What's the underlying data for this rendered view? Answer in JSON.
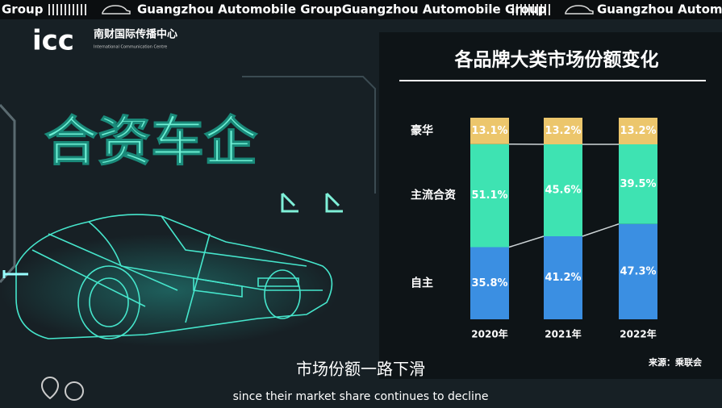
{
  "banner": {
    "texts": [
      "Group",
      "Guangzhou Automobile GroupGuangzhou Automobile Group",
      "Guangzhou Automobile"
    ]
  },
  "logo": {
    "mark": "icc",
    "name": "南财国际传播中心",
    "english": "International Communication Centre"
  },
  "headline": "合资车企",
  "subtitle": {
    "chinese": "市场份额一路下滑",
    "english": "since their market share continues to decline"
  },
  "chart_data": {
    "type": "stacked-bar",
    "title": "各品牌大类市场份额变化",
    "categories": [
      "2020年",
      "2021年",
      "2022年"
    ],
    "series": [
      {
        "name": "自主",
        "color": "#3b8fe2",
        "values": [
          35.8,
          41.2,
          47.3
        ],
        "value_labels": [
          "35.8%",
          "41.2%",
          "47.3%"
        ]
      },
      {
        "name": "主流合资",
        "color": "#3ee3b2",
        "values": [
          51.1,
          45.6,
          39.5
        ],
        "value_labels": [
          "51.1%",
          "45.6%",
          "39.5%"
        ]
      },
      {
        "name": "豪华",
        "color": "#ecc66c",
        "values": [
          13.1,
          13.2,
          13.2
        ],
        "value_labels": [
          "13.1%",
          "13.2%",
          "13.2%"
        ]
      }
    ],
    "source": "来源：乘联会"
  }
}
